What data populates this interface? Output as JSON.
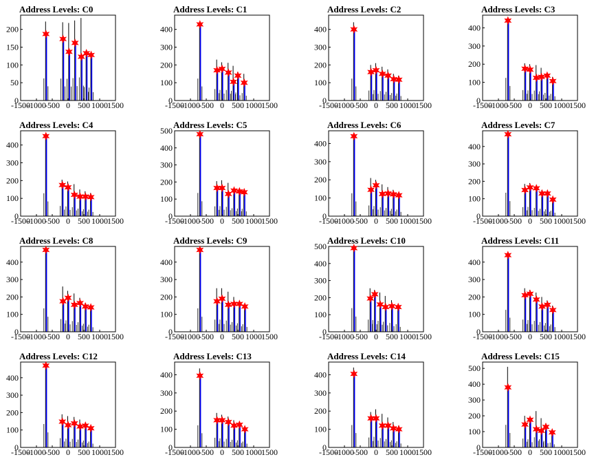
{
  "figure": {
    "title_prefix": "Address Levels: ",
    "x_ticks": [
      -1500,
      -1000,
      -500,
      0,
      500,
      1000,
      1500
    ],
    "x_tick_labels": [
      "-1500",
      "-1000",
      "-500",
      "0",
      "500",
      "1000",
      "1500"
    ],
    "colors": {
      "background": "#ffffff",
      "axis": "#000000",
      "hist_line": "#000000",
      "hist_fill": "#0000ff",
      "peak_marker": "#ff0000"
    }
  },
  "chart_data": [
    {
      "type": "bar",
      "title": "Address Levels: C0",
      "xlim": [
        -1500,
        1500
      ],
      "ylim": [
        0,
        240
      ],
      "yticks": [
        0,
        50,
        100,
        150,
        200
      ],
      "peaks": [
        {
          "x": -700,
          "y": 187
        },
        {
          "x": -160,
          "y": 173
        },
        {
          "x": 30,
          "y": 137
        },
        {
          "x": 220,
          "y": 162
        },
        {
          "x": 420,
          "y": 123
        },
        {
          "x": 580,
          "y": 133
        },
        {
          "x": 730,
          "y": 128
        }
      ],
      "black_max": [
        {
          "x": -700,
          "y": 222
        },
        {
          "x": -160,
          "y": 220
        },
        {
          "x": 30,
          "y": 218
        },
        {
          "x": 220,
          "y": 225
        },
        {
          "x": 420,
          "y": 232
        },
        {
          "x": 580,
          "y": 135
        },
        {
          "x": 730,
          "y": 130
        }
      ]
    },
    {
      "type": "bar",
      "title": "Address Levels: C1",
      "xlim": [
        -1500,
        1500
      ],
      "ylim": [
        0,
        480
      ],
      "yticks": [
        0,
        100,
        200,
        300,
        400
      ],
      "peaks": [
        {
          "x": -700,
          "y": 428
        },
        {
          "x": -160,
          "y": 170
        },
        {
          "x": 0,
          "y": 178
        },
        {
          "x": 200,
          "y": 157
        },
        {
          "x": 360,
          "y": 105
        },
        {
          "x": 500,
          "y": 140
        },
        {
          "x": 700,
          "y": 100
        }
      ],
      "black_max": [
        {
          "x": -700,
          "y": 440
        },
        {
          "x": -160,
          "y": 230
        },
        {
          "x": 0,
          "y": 215
        },
        {
          "x": 200,
          "y": 212
        },
        {
          "x": 360,
          "y": 195
        },
        {
          "x": 500,
          "y": 160
        },
        {
          "x": 700,
          "y": 150
        }
      ]
    },
    {
      "type": "bar",
      "title": "Address Levels: C2",
      "xlim": [
        -1500,
        1500
      ],
      "ylim": [
        0,
        480
      ],
      "yticks": [
        0,
        100,
        200,
        300,
        400
      ],
      "peaks": [
        {
          "x": -700,
          "y": 400
        },
        {
          "x": -160,
          "y": 160
        },
        {
          "x": 0,
          "y": 170
        },
        {
          "x": 200,
          "y": 150
        },
        {
          "x": 380,
          "y": 140
        },
        {
          "x": 560,
          "y": 120
        },
        {
          "x": 720,
          "y": 117
        }
      ],
      "black_max": [
        {
          "x": -700,
          "y": 440
        },
        {
          "x": -160,
          "y": 200
        },
        {
          "x": 0,
          "y": 210
        },
        {
          "x": 200,
          "y": 190
        },
        {
          "x": 380,
          "y": 175
        },
        {
          "x": 560,
          "y": 150
        },
        {
          "x": 720,
          "y": 140
        }
      ]
    },
    {
      "type": "bar",
      "title": "Address Levels: C3",
      "xlim": [
        -1500,
        1500
      ],
      "ylim": [
        0,
        470
      ],
      "yticks": [
        0,
        100,
        200,
        300,
        400
      ],
      "peaks": [
        {
          "x": -700,
          "y": 440
        },
        {
          "x": -160,
          "y": 175
        },
        {
          "x": 0,
          "y": 170
        },
        {
          "x": 200,
          "y": 125
        },
        {
          "x": 360,
          "y": 130
        },
        {
          "x": 540,
          "y": 137
        },
        {
          "x": 720,
          "y": 107
        }
      ],
      "black_max": [
        {
          "x": -700,
          "y": 445
        },
        {
          "x": -160,
          "y": 205
        },
        {
          "x": 0,
          "y": 200
        },
        {
          "x": 200,
          "y": 195
        },
        {
          "x": 360,
          "y": 180
        },
        {
          "x": 540,
          "y": 150
        },
        {
          "x": 720,
          "y": 130
        }
      ]
    },
    {
      "type": "bar",
      "title": "Address Levels: C4",
      "xlim": [
        -1500,
        1500
      ],
      "ylim": [
        0,
        480
      ],
      "yticks": [
        0,
        100,
        200,
        300,
        400
      ],
      "peaks": [
        {
          "x": -700,
          "y": 450
        },
        {
          "x": -180,
          "y": 175
        },
        {
          "x": 0,
          "y": 162
        },
        {
          "x": 200,
          "y": 120
        },
        {
          "x": 380,
          "y": 110
        },
        {
          "x": 550,
          "y": 110
        },
        {
          "x": 720,
          "y": 107
        }
      ],
      "black_max": [
        {
          "x": -700,
          "y": 460
        },
        {
          "x": -180,
          "y": 205
        },
        {
          "x": 0,
          "y": 195
        },
        {
          "x": 200,
          "y": 180
        },
        {
          "x": 380,
          "y": 150
        },
        {
          "x": 550,
          "y": 140
        },
        {
          "x": 720,
          "y": 130
        }
      ]
    },
    {
      "type": "bar",
      "title": "Address Levels: C5",
      "xlim": [
        -1500,
        1500
      ],
      "ylim": [
        0,
        500
      ],
      "yticks": [
        0,
        100,
        200,
        300,
        400,
        500
      ],
      "peaks": [
        {
          "x": -700,
          "y": 480
        },
        {
          "x": -160,
          "y": 165
        },
        {
          "x": 0,
          "y": 165
        },
        {
          "x": 200,
          "y": 130
        },
        {
          "x": 380,
          "y": 150
        },
        {
          "x": 550,
          "y": 145
        },
        {
          "x": 700,
          "y": 140
        }
      ],
      "black_max": [
        {
          "x": -700,
          "y": 485
        },
        {
          "x": -160,
          "y": 205
        },
        {
          "x": 0,
          "y": 210
        },
        {
          "x": 200,
          "y": 195
        },
        {
          "x": 380,
          "y": 165
        },
        {
          "x": 550,
          "y": 160
        },
        {
          "x": 700,
          "y": 155
        }
      ]
    },
    {
      "type": "bar",
      "title": "Address Levels: C6",
      "xlim": [
        -1500,
        1500
      ],
      "ylim": [
        0,
        470
      ],
      "yticks": [
        0,
        100,
        200,
        300,
        400
      ],
      "peaks": [
        {
          "x": -700,
          "y": 440
        },
        {
          "x": -160,
          "y": 145
        },
        {
          "x": 0,
          "y": 170
        },
        {
          "x": 200,
          "y": 122
        },
        {
          "x": 380,
          "y": 125
        },
        {
          "x": 550,
          "y": 120
        },
        {
          "x": 720,
          "y": 115
        }
      ],
      "black_max": [
        {
          "x": -700,
          "y": 450
        },
        {
          "x": -160,
          "y": 210
        },
        {
          "x": 0,
          "y": 200
        },
        {
          "x": 200,
          "y": 175
        },
        {
          "x": 380,
          "y": 160
        },
        {
          "x": 550,
          "y": 145
        },
        {
          "x": 720,
          "y": 130
        }
      ]
    },
    {
      "type": "bar",
      "title": "Address Levels: C7",
      "xlim": [
        -1500,
        1500
      ],
      "ylim": [
        0,
        490
      ],
      "yticks": [
        0,
        100,
        200,
        300,
        400
      ],
      "peaks": [
        {
          "x": -700,
          "y": 470
        },
        {
          "x": -160,
          "y": 150
        },
        {
          "x": 0,
          "y": 165
        },
        {
          "x": 200,
          "y": 160
        },
        {
          "x": 380,
          "y": 130
        },
        {
          "x": 550,
          "y": 130
        },
        {
          "x": 720,
          "y": 95
        }
      ],
      "black_max": [
        {
          "x": -700,
          "y": 480
        },
        {
          "x": -160,
          "y": 185
        },
        {
          "x": 0,
          "y": 190
        },
        {
          "x": 200,
          "y": 170
        },
        {
          "x": 380,
          "y": 150
        },
        {
          "x": 550,
          "y": 140
        },
        {
          "x": 720,
          "y": 110
        }
      ]
    },
    {
      "type": "bar",
      "title": "Address Levels: C8",
      "xlim": [
        -1500,
        1500
      ],
      "ylim": [
        0,
        490
      ],
      "yticks": [
        0,
        100,
        200,
        300,
        400
      ],
      "peaks": [
        {
          "x": -700,
          "y": 470
        },
        {
          "x": -160,
          "y": 175
        },
        {
          "x": 0,
          "y": 195
        },
        {
          "x": 200,
          "y": 155
        },
        {
          "x": 380,
          "y": 165
        },
        {
          "x": 550,
          "y": 145
        },
        {
          "x": 720,
          "y": 140
        }
      ],
      "black_max": [
        {
          "x": -700,
          "y": 480
        },
        {
          "x": -160,
          "y": 260
        },
        {
          "x": 0,
          "y": 235
        },
        {
          "x": 200,
          "y": 220
        },
        {
          "x": 380,
          "y": 195
        },
        {
          "x": 550,
          "y": 165
        },
        {
          "x": 720,
          "y": 145
        }
      ]
    },
    {
      "type": "bar",
      "title": "Address Levels: C9",
      "xlim": [
        -1500,
        1500
      ],
      "ylim": [
        0,
        490
      ],
      "yticks": [
        0,
        100,
        200,
        300,
        400
      ],
      "peaks": [
        {
          "x": -700,
          "y": 470
        },
        {
          "x": -160,
          "y": 175
        },
        {
          "x": 0,
          "y": 190
        },
        {
          "x": 200,
          "y": 155
        },
        {
          "x": 380,
          "y": 160
        },
        {
          "x": 550,
          "y": 160
        },
        {
          "x": 720,
          "y": 145
        }
      ],
      "black_max": [
        {
          "x": -700,
          "y": 480
        },
        {
          "x": -160,
          "y": 250
        },
        {
          "x": 0,
          "y": 250
        },
        {
          "x": 200,
          "y": 230
        },
        {
          "x": 380,
          "y": 200
        },
        {
          "x": 550,
          "y": 175
        },
        {
          "x": 720,
          "y": 155
        }
      ]
    },
    {
      "type": "bar",
      "title": "Address Levels: C10",
      "xlim": [
        -1500,
        1500
      ],
      "ylim": [
        0,
        500
      ],
      "yticks": [
        0,
        100,
        200,
        300,
        400,
        500
      ],
      "peaks": [
        {
          "x": -700,
          "y": 490
        },
        {
          "x": -180,
          "y": 195
        },
        {
          "x": -40,
          "y": 220
        },
        {
          "x": 130,
          "y": 160
        },
        {
          "x": 300,
          "y": 145
        },
        {
          "x": 500,
          "y": 150
        },
        {
          "x": 700,
          "y": 145
        }
      ],
      "black_max": [
        {
          "x": -700,
          "y": 495
        },
        {
          "x": -180,
          "y": 255
        },
        {
          "x": -40,
          "y": 245
        },
        {
          "x": 130,
          "y": 230
        },
        {
          "x": 300,
          "y": 210
        },
        {
          "x": 500,
          "y": 185
        },
        {
          "x": 700,
          "y": 160
        }
      ]
    },
    {
      "type": "bar",
      "title": "Address Levels: C11",
      "xlim": [
        -1500,
        1500
      ],
      "ylim": [
        0,
        490
      ],
      "yticks": [
        0,
        100,
        200,
        300,
        400
      ],
      "peaks": [
        {
          "x": -700,
          "y": 440
        },
        {
          "x": -160,
          "y": 210
        },
        {
          "x": 0,
          "y": 218
        },
        {
          "x": 200,
          "y": 185
        },
        {
          "x": 380,
          "y": 145
        },
        {
          "x": 550,
          "y": 155
        },
        {
          "x": 720,
          "y": 125
        }
      ],
      "black_max": [
        {
          "x": -700,
          "y": 450
        },
        {
          "x": -160,
          "y": 250
        },
        {
          "x": 0,
          "y": 240
        },
        {
          "x": 200,
          "y": 225
        },
        {
          "x": 380,
          "y": 200
        },
        {
          "x": 550,
          "y": 180
        },
        {
          "x": 720,
          "y": 150
        }
      ]
    },
    {
      "type": "bar",
      "title": "Address Levels: C12",
      "xlim": [
        -1500,
        1500
      ],
      "ylim": [
        0,
        490
      ],
      "yticks": [
        0,
        100,
        200,
        300,
        400
      ],
      "peaks": [
        {
          "x": -700,
          "y": 470
        },
        {
          "x": -180,
          "y": 148
        },
        {
          "x": 0,
          "y": 128
        },
        {
          "x": 200,
          "y": 138
        },
        {
          "x": 380,
          "y": 120
        },
        {
          "x": 550,
          "y": 125
        },
        {
          "x": 720,
          "y": 110
        }
      ],
      "black_max": [
        {
          "x": -700,
          "y": 480
        },
        {
          "x": -180,
          "y": 190
        },
        {
          "x": 0,
          "y": 180
        },
        {
          "x": 200,
          "y": 175
        },
        {
          "x": 380,
          "y": 160
        },
        {
          "x": 550,
          "y": 140
        },
        {
          "x": 720,
          "y": 120
        }
      ]
    },
    {
      "type": "bar",
      "title": "Address Levels: C13",
      "xlim": [
        -1500,
        1500
      ],
      "ylim": [
        0,
        470
      ],
      "yticks": [
        0,
        100,
        200,
        300,
        400
      ],
      "peaks": [
        {
          "x": -700,
          "y": 395
        },
        {
          "x": -160,
          "y": 150
        },
        {
          "x": 0,
          "y": 150
        },
        {
          "x": 200,
          "y": 140
        },
        {
          "x": 380,
          "y": 120
        },
        {
          "x": 550,
          "y": 125
        },
        {
          "x": 720,
          "y": 100
        }
      ],
      "black_max": [
        {
          "x": -700,
          "y": 435
        },
        {
          "x": -160,
          "y": 190
        },
        {
          "x": 0,
          "y": 180
        },
        {
          "x": 200,
          "y": 170
        },
        {
          "x": 380,
          "y": 150
        },
        {
          "x": 550,
          "y": 140
        },
        {
          "x": 720,
          "y": 115
        }
      ]
    },
    {
      "type": "bar",
      "title": "Address Levels: C14",
      "xlim": [
        -1500,
        1500
      ],
      "ylim": [
        0,
        470
      ],
      "yticks": [
        0,
        100,
        200,
        300,
        400
      ],
      "peaks": [
        {
          "x": -700,
          "y": 405
        },
        {
          "x": -160,
          "y": 160
        },
        {
          "x": 0,
          "y": 160
        },
        {
          "x": 200,
          "y": 120
        },
        {
          "x": 380,
          "y": 120
        },
        {
          "x": 550,
          "y": 105
        },
        {
          "x": 720,
          "y": 100
        }
      ],
      "black_max": [
        {
          "x": -700,
          "y": 440
        },
        {
          "x": -160,
          "y": 195
        },
        {
          "x": 0,
          "y": 210
        },
        {
          "x": 200,
          "y": 185
        },
        {
          "x": 380,
          "y": 165
        },
        {
          "x": 550,
          "y": 140
        },
        {
          "x": 720,
          "y": 120
        }
      ]
    },
    {
      "type": "bar",
      "title": "Address Levels: C15",
      "xlim": [
        -1500,
        1500
      ],
      "ylim": [
        0,
        540
      ],
      "yticks": [
        0,
        100,
        200,
        300,
        400,
        500
      ],
      "peaks": [
        {
          "x": -700,
          "y": 380
        },
        {
          "x": -160,
          "y": 145
        },
        {
          "x": 0,
          "y": 175
        },
        {
          "x": 200,
          "y": 115
        },
        {
          "x": 360,
          "y": 105
        },
        {
          "x": 500,
          "y": 130
        },
        {
          "x": 700,
          "y": 95
        }
      ],
      "black_max": [
        {
          "x": -700,
          "y": 510
        },
        {
          "x": -160,
          "y": 200
        },
        {
          "x": 0,
          "y": 185
        },
        {
          "x": 200,
          "y": 230
        },
        {
          "x": 360,
          "y": 185
        },
        {
          "x": 500,
          "y": 150
        },
        {
          "x": 700,
          "y": 110
        }
      ]
    }
  ]
}
